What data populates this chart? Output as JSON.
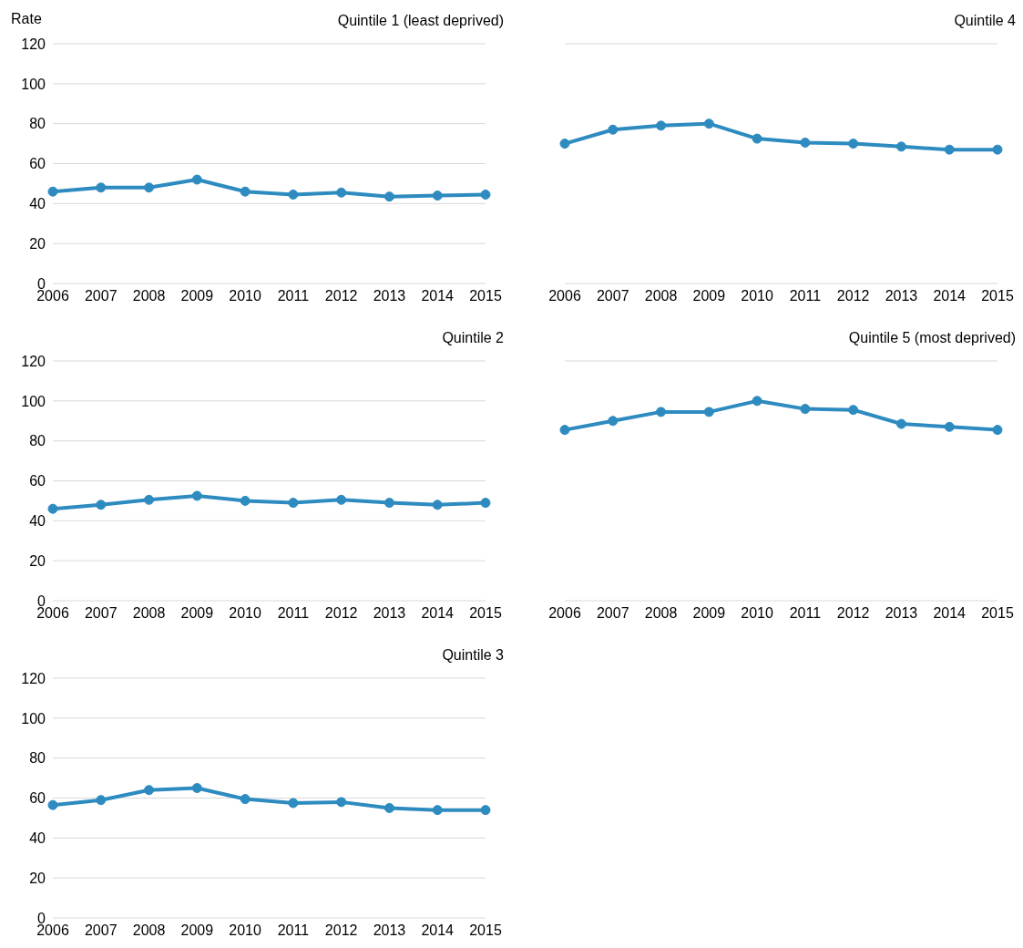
{
  "chart_data": [
    {
      "type": "line",
      "title": "Quintile 1 (least deprived)",
      "ylabel": "Rate",
      "categories": [
        "2006",
        "2007",
        "2008",
        "2009",
        "2010",
        "2011",
        "2012",
        "2013",
        "2014",
        "2015"
      ],
      "values": [
        46,
        48,
        48,
        52,
        46,
        44.5,
        45.5,
        43.5,
        44,
        44.5
      ],
      "color": "#2e8bc0",
      "ylim": [
        0,
        120
      ],
      "yticks": [
        0,
        20,
        40,
        60,
        80,
        100,
        120
      ],
      "grid": "y",
      "marker": "circle"
    },
    {
      "type": "line",
      "title": "Quintile 4",
      "categories": [
        "2006",
        "2007",
        "2008",
        "2009",
        "2010",
        "2011",
        "2012",
        "2013",
        "2014",
        "2015"
      ],
      "values": [
        70,
        77,
        79,
        80,
        72.5,
        70.5,
        70,
        68.5,
        67,
        67
      ],
      "color": "#2e8bc0",
      "ylim": [
        0,
        120
      ],
      "yticks": [
        0,
        20,
        40,
        60,
        80,
        100,
        120
      ],
      "grid": "y",
      "marker": "circle",
      "tick_labels": "x"
    },
    {
      "type": "line",
      "title": "Quintile 2",
      "categories": [
        "2006",
        "2007",
        "2008",
        "2009",
        "2010",
        "2011",
        "2012",
        "2013",
        "2014",
        "2015"
      ],
      "values": [
        46,
        48,
        50.5,
        52.5,
        50,
        49,
        50.5,
        49,
        48,
        49
      ],
      "color": "#2e8bc0",
      "ylim": [
        0,
        120
      ],
      "yticks": [
        0,
        20,
        40,
        60,
        80,
        100,
        120
      ],
      "grid": "y",
      "marker": "circle"
    },
    {
      "type": "line",
      "title": "Quintile 5 (most deprived)",
      "categories": [
        "2006",
        "2007",
        "2008",
        "2009",
        "2010",
        "2011",
        "2012",
        "2013",
        "2014",
        "2015"
      ],
      "values": [
        85.5,
        90,
        94.5,
        94.5,
        100,
        96,
        95.5,
        88.5,
        87,
        85.5
      ],
      "color": "#2e8bc0",
      "ylim": [
        0,
        120
      ],
      "yticks": [
        0,
        20,
        40,
        60,
        80,
        100,
        120
      ],
      "grid": "y",
      "marker": "circle",
      "tick_labels": "x"
    },
    {
      "type": "line",
      "title": "Quintile 3",
      "categories": [
        "2006",
        "2007",
        "2008",
        "2009",
        "2010",
        "2011",
        "2012",
        "2013",
        "2014",
        "2015"
      ],
      "values": [
        56.5,
        59,
        64,
        65,
        59.5,
        57.5,
        58,
        55,
        54,
        54
      ],
      "color": "#2e8bc0",
      "ylim": [
        0,
        120
      ],
      "yticks": [
        0,
        20,
        40,
        60,
        80,
        100,
        120
      ],
      "grid": "y",
      "marker": "circle"
    }
  ]
}
